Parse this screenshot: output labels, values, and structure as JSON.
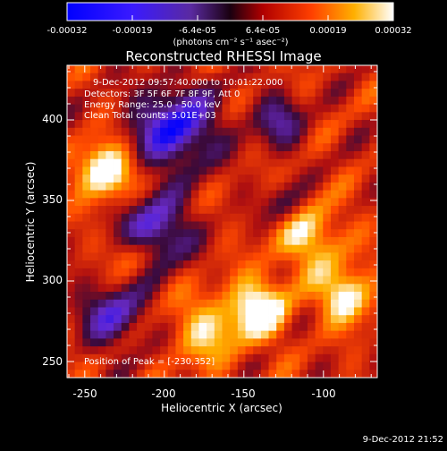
{
  "colorbar": {
    "tick_labels": [
      "-0.00032",
      "-0.00019",
      "-6.4e-05",
      "6.4e-05",
      "0.00019",
      "0.00032"
    ],
    "units": "(photons cm⁻² s⁻¹ asec⁻²)"
  },
  "plot": {
    "title": "Reconstructed RHESSI Image",
    "xlabel": "Heliocentric X (arcsec)",
    "ylabel": "Heliocentric Y (arcsec)",
    "xticks": [
      "-250",
      "-200",
      "-150",
      "-100"
    ],
    "yticks": [
      "400",
      "350",
      "300",
      "250"
    ],
    "annotation": {
      "time_range": "9-Dec-2012 09:57:40.000 to 10:01:22.000",
      "detectors": "Detectors: 3F 5F 6F 7F 8F 9F, Att 0",
      "energy": "Energy Range: 25.0 - 50.0 keV",
      "method": "Clean     Total counts: 5.01E+03"
    },
    "peak": "Position of Peak = [-230,352]"
  },
  "footer_timestamp": "9-Dec-2012 21:52",
  "colors": {
    "background": "#000000",
    "colormap": [
      "#0000ff",
      "#6a2cd0",
      "#3a0a3a",
      "#b01010",
      "#ff4a00",
      "#ffb000",
      "#ffffff"
    ]
  }
}
